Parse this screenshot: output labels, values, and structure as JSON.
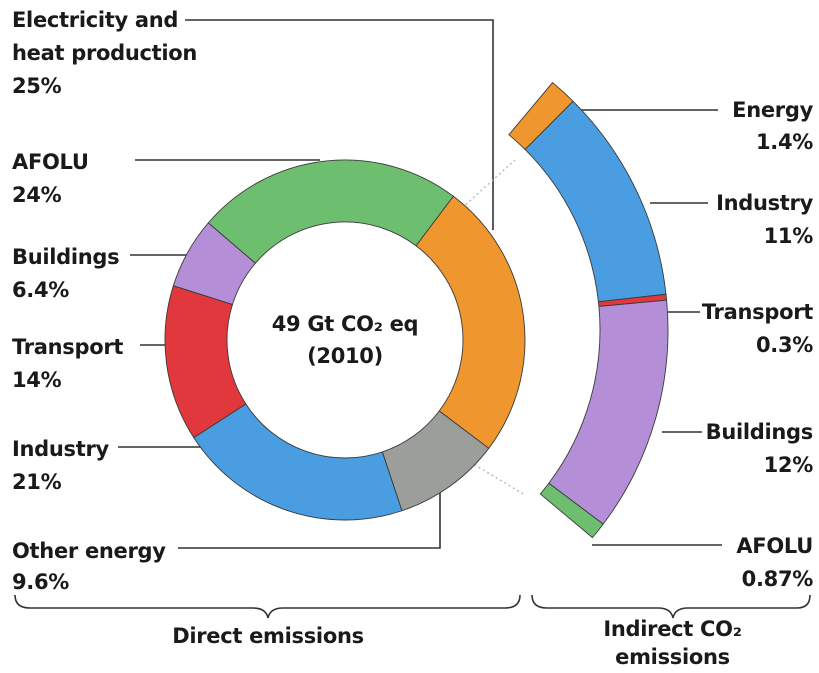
{
  "chart_data": {
    "type": "pie",
    "center_label": "49 Gt CO₂ eq\n(2010)",
    "direct": {
      "label": "Direct emissions",
      "categories": [
        "Electricity and\nheat production",
        "Other energy",
        "Industry",
        "Transport",
        "Buildings",
        "AFOLU"
      ],
      "values": [
        25,
        9.6,
        21,
        14,
        6.4,
        24
      ],
      "value_labels": [
        "25%",
        "9.6%",
        "21%",
        "14%",
        "6.4%",
        "24%"
      ],
      "colors": [
        "#f0962f",
        "#9b9e9b",
        "#4a9de0",
        "#e0383c",
        "#b48fd8",
        "#6dbf6f"
      ]
    },
    "indirect": {
      "label": "Indirect CO₂\nemissions",
      "categories": [
        "Energy",
        "Industry",
        "Transport",
        "Buildings",
        "AFOLU"
      ],
      "values": [
        1.4,
        11,
        0.3,
        12,
        0.87
      ],
      "value_labels": [
        "1.4%",
        "11%",
        "0.3%",
        "12%",
        "0.87%"
      ],
      "colors": [
        "#f0962f",
        "#4a9de0",
        "#e0383c",
        "#b48fd8",
        "#6dbf6f"
      ]
    }
  }
}
